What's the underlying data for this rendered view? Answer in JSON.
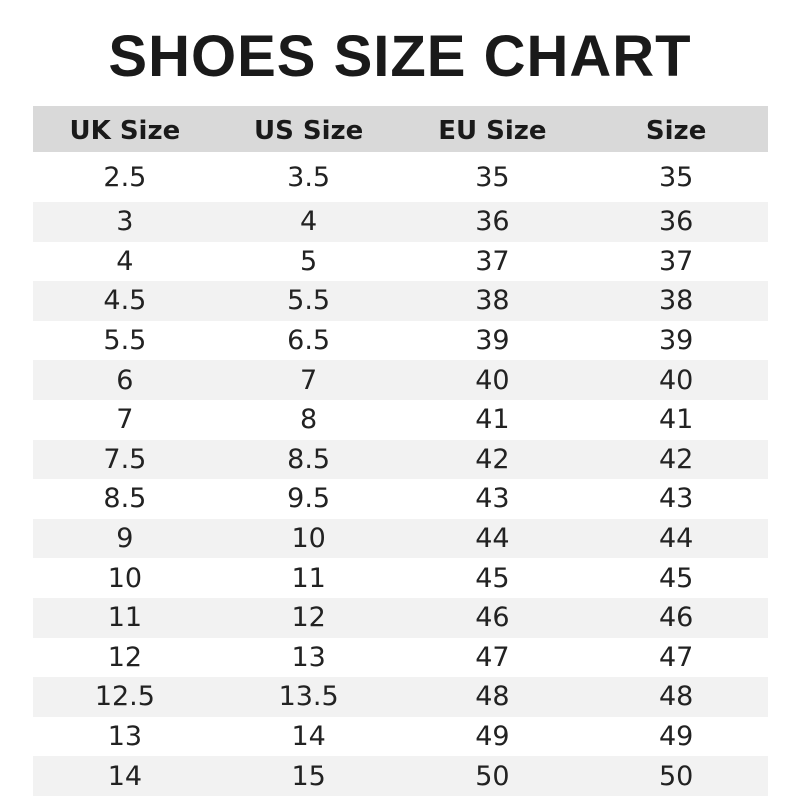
{
  "title": "SHOES SIZE CHART",
  "colors": {
    "header_bg": "#d9d9d9",
    "stripe_bg": "#f2f2f2",
    "text": "#1a1a1a"
  },
  "table": {
    "headers": [
      "UK Size",
      "US Size",
      "EU Size",
      "Size"
    ],
    "rows": [
      [
        "2.5",
        "3.5",
        "35",
        "35"
      ],
      [
        "3",
        "4",
        "36",
        "36"
      ],
      [
        "4",
        "5",
        "37",
        "37"
      ],
      [
        "4.5",
        "5.5",
        "38",
        "38"
      ],
      [
        "5.5",
        "6.5",
        "39",
        "39"
      ],
      [
        "6",
        "7",
        "40",
        "40"
      ],
      [
        "7",
        "8",
        "41",
        "41"
      ],
      [
        "7.5",
        "8.5",
        "42",
        "42"
      ],
      [
        "8.5",
        "9.5",
        "43",
        "43"
      ],
      [
        "9",
        "10",
        "44",
        "44"
      ],
      [
        "10",
        "11",
        "45",
        "45"
      ],
      [
        "11",
        "12",
        "46",
        "46"
      ],
      [
        "12",
        "13",
        "47",
        "47"
      ],
      [
        "12.5",
        "13.5",
        "48",
        "48"
      ],
      [
        "13",
        "14",
        "49",
        "49"
      ],
      [
        "14",
        "15",
        "50",
        "50"
      ]
    ]
  }
}
